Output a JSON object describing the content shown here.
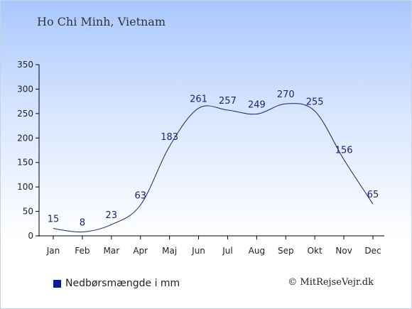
{
  "location": "Ho Chi Minh, Vietnam",
  "legend_label": "Nedbørsmængde i mm",
  "credit": "© MitRejseVejr.dk",
  "colors": {
    "line": "#1a237e",
    "legend": "#0a1aa0"
  },
  "chart_data": {
    "type": "line",
    "categories": [
      "Jan",
      "Feb",
      "Mar",
      "Apr",
      "Maj",
      "Jun",
      "Jul",
      "Aug",
      "Sep",
      "Okt",
      "Nov",
      "Dec"
    ],
    "series": [
      {
        "name": "Nedbørsmængde i mm",
        "values": [
          15,
          8,
          23,
          63,
          183,
          261,
          257,
          249,
          270,
          255,
          156,
          65
        ]
      }
    ],
    "yticks": [
      0,
      50,
      100,
      150,
      200,
      250,
      300,
      350
    ],
    "ylim": [
      0,
      350
    ],
    "grid": false,
    "legend_position": "bottom-left"
  }
}
